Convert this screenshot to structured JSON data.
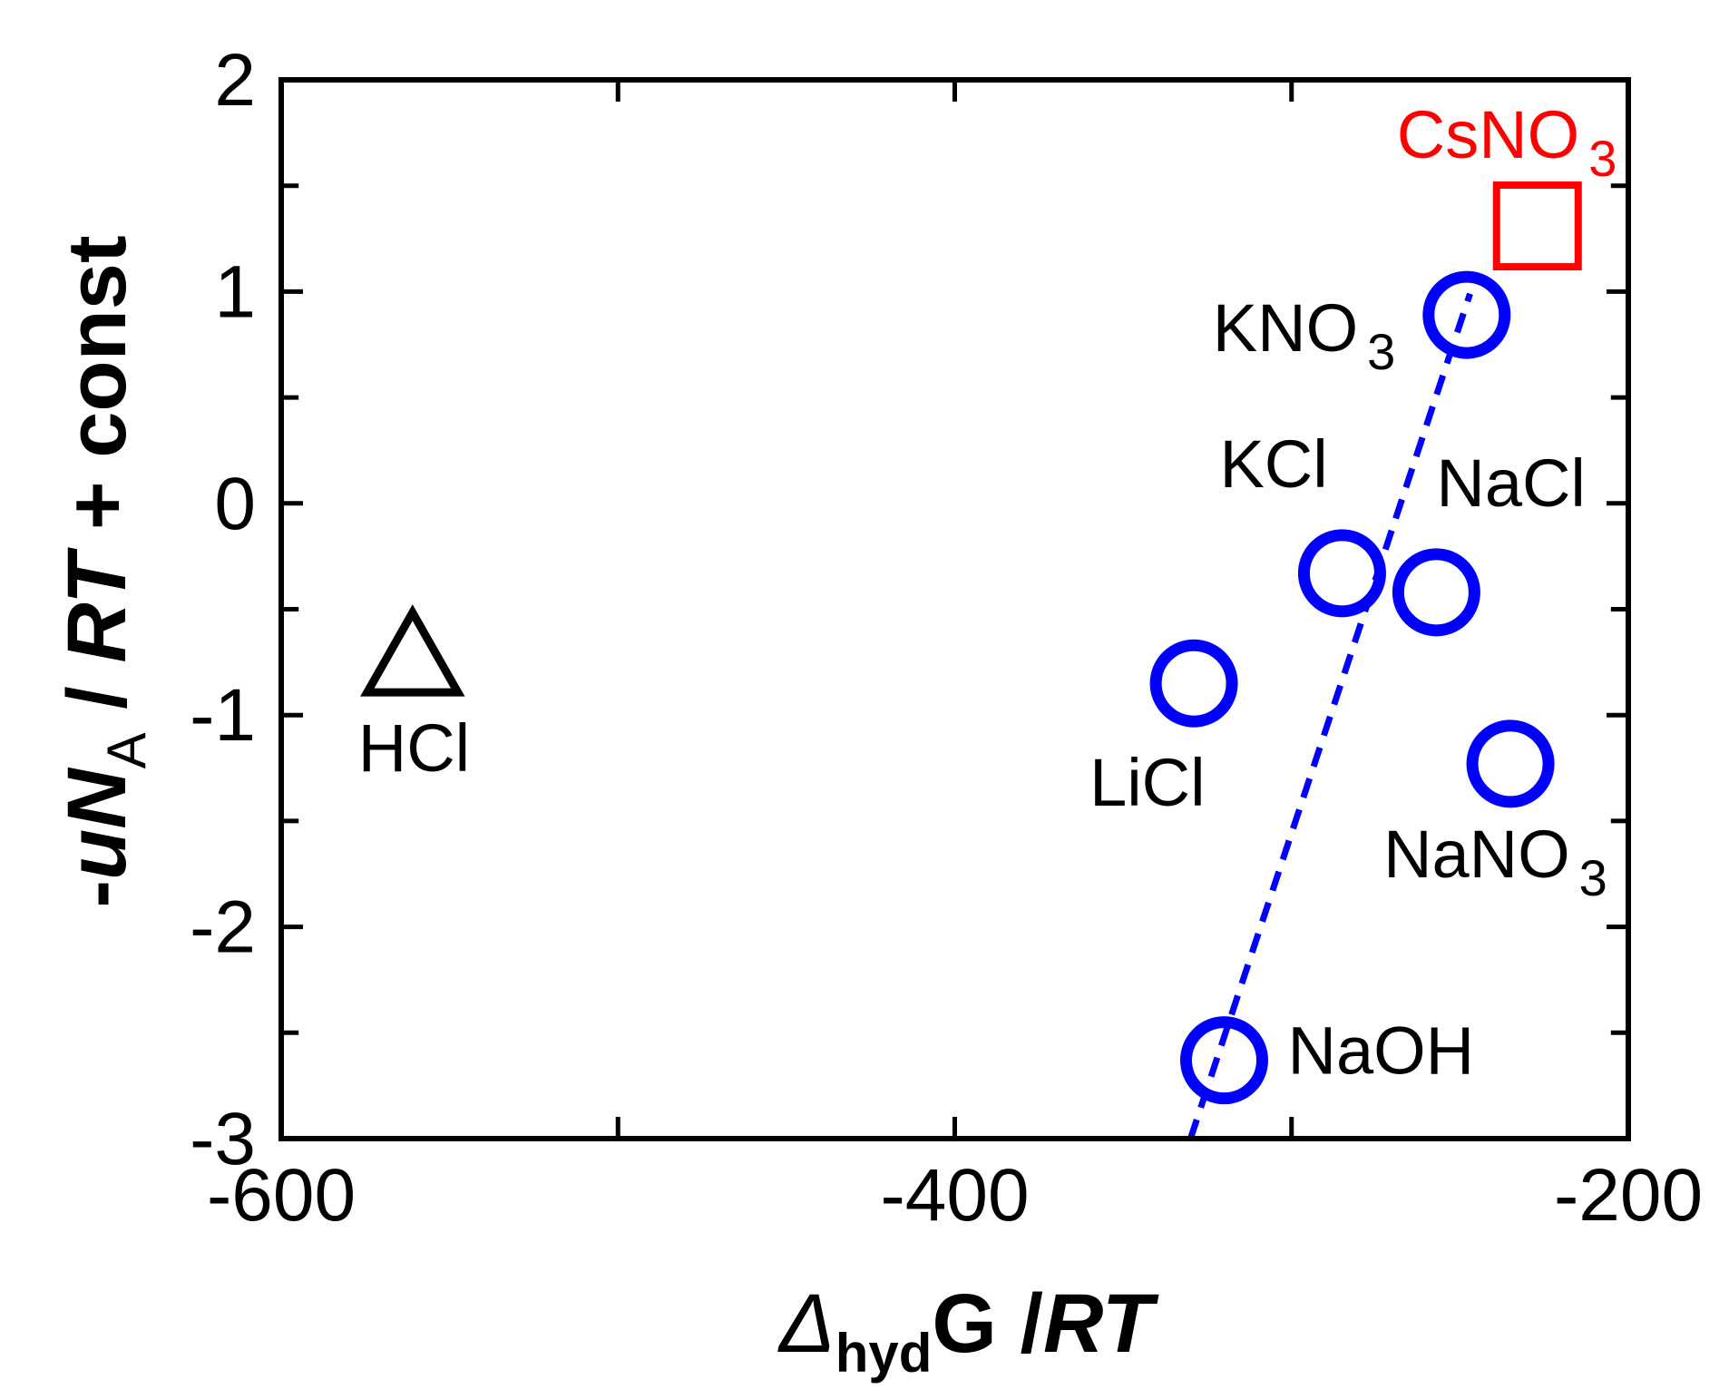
{
  "chart_data": {
    "type": "scatter",
    "xlim": [
      -600,
      -200
    ],
    "ylim": [
      -3,
      2
    ],
    "x_major_ticks": [
      -600,
      -400,
      -200
    ],
    "x_minor_ticks": [
      -500,
      -300
    ],
    "y_major_ticks": [
      -3,
      -2,
      -1,
      0,
      1,
      2
    ],
    "x_tick_labels": [
      "-600",
      "-400",
      "-200"
    ],
    "y_tick_labels": [
      "-3",
      "-2",
      "-1",
      "0",
      "1",
      "2"
    ],
    "xlabel": {
      "symbol": "Δ",
      "sub": "hyd",
      "rest": "G /",
      "italic": "RT"
    },
    "ylabel": {
      "prefix": "-",
      "italic1": "uN",
      "sub": "A",
      "mid": " / ",
      "italic2": "RT",
      "suffix": " + const"
    },
    "grid": false,
    "legend": "none",
    "series": [
      {
        "marker": "circle",
        "color": "#0000ff",
        "points": [
          {
            "label": "KNO",
            "sub": "3",
            "x": -248,
            "y": 0.89
          },
          {
            "label": "KCl",
            "sub": "",
            "x": -285,
            "y": -0.33
          },
          {
            "label": "NaCl",
            "sub": "",
            "x": -257,
            "y": -0.42
          },
          {
            "label": "LiCl",
            "sub": "",
            "x": -329,
            "y": -0.85
          },
          {
            "label": "NaNO",
            "sub": "3",
            "x": -235,
            "y": -1.23
          },
          {
            "label": "NaOH",
            "sub": "",
            "x": -320,
            "y": -2.63
          }
        ]
      },
      {
        "marker": "square",
        "color": "#ff0000",
        "label_color": "#ff0000",
        "points": [
          {
            "label": "CsNO",
            "sub": "3",
            "x": -227,
            "y": 1.31
          }
        ]
      },
      {
        "marker": "triangle",
        "color": "#000000",
        "points": [
          {
            "label": "HCl",
            "sub": "",
            "x": -561,
            "y": -0.73
          }
        ]
      }
    ],
    "fit_line": {
      "style": "dashed",
      "color": "#0000ff",
      "x": [
        -330,
        -247
      ],
      "y": [
        -3.0,
        0.99
      ]
    }
  }
}
